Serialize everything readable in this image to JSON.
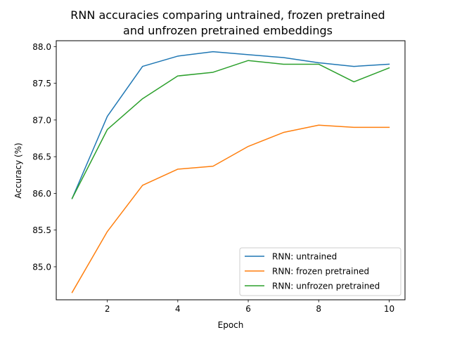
{
  "chart_data": {
    "type": "line",
    "title_line1": "RNN accuracies comparing untrained, frozen pretrained",
    "title_line2": "and unfrozen pretrained embeddings",
    "xlabel": "Epoch",
    "ylabel": "Accuracy (%)",
    "x": [
      1,
      2,
      3,
      4,
      5,
      6,
      7,
      8,
      9,
      10
    ],
    "xlim": [
      0.55,
      10.45
    ],
    "ylim": [
      84.55,
      88.08
    ],
    "xticks": [
      2,
      4,
      6,
      8,
      10
    ],
    "xtick_labels": [
      "2",
      "4",
      "6",
      "8",
      "10"
    ],
    "yticks": [
      85.0,
      85.5,
      86.0,
      86.5,
      87.0,
      87.5,
      88.0
    ],
    "ytick_labels": [
      "85.0",
      "85.5",
      "86.0",
      "86.5",
      "87.0",
      "87.5",
      "88.0"
    ],
    "grid": false,
    "legend_position": "lower-right",
    "series": [
      {
        "name": "RNN: untrained",
        "color": "#1f77b4",
        "values": [
          85.93,
          87.05,
          87.73,
          87.87,
          87.93,
          87.89,
          87.85,
          87.78,
          87.73,
          87.76
        ]
      },
      {
        "name": "RNN: frozen pretrained",
        "color": "#ff7f0e",
        "values": [
          84.65,
          85.48,
          86.11,
          86.33,
          86.37,
          86.64,
          86.83,
          86.93,
          86.9,
          86.9
        ]
      },
      {
        "name": "RNN: unfrozen pretrained",
        "color": "#2ca02c",
        "values": [
          85.93,
          86.87,
          87.29,
          87.6,
          87.65,
          87.81,
          87.76,
          87.76,
          87.52,
          87.71
        ]
      }
    ]
  }
}
